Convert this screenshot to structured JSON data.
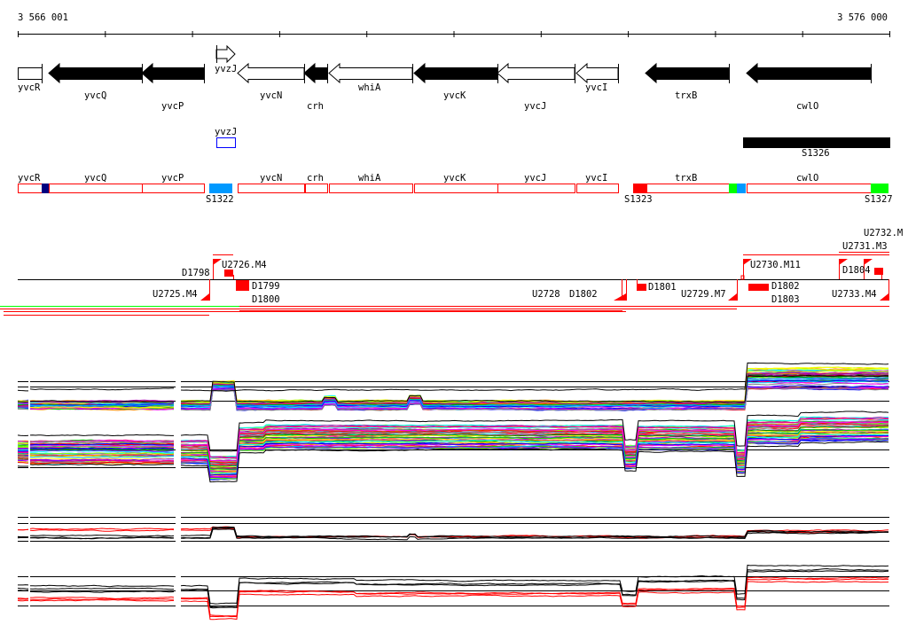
{
  "ruler": {
    "start_label": "3 566 001",
    "end_label": "3 576 000"
  },
  "genes": [
    {
      "name": "yvcR",
      "strand": "none",
      "filled": false
    },
    {
      "name": "yvcQ",
      "strand": "-",
      "filled": true
    },
    {
      "name": "yvcP",
      "strand": "-",
      "filled": true
    },
    {
      "name": "yvzJ",
      "strand": "+",
      "filled": false
    },
    {
      "name": "yvcN",
      "strand": "-",
      "filled": false
    },
    {
      "name": "crh",
      "strand": "-",
      "filled": true
    },
    {
      "name": "whiA",
      "strand": "-",
      "filled": false
    },
    {
      "name": "yvcK",
      "strand": "-",
      "filled": true
    },
    {
      "name": "yvcJ",
      "strand": "-",
      "filled": false
    },
    {
      "name": "yvcI",
      "strand": "-",
      "filled": false
    },
    {
      "name": "trxB",
      "strand": "-",
      "filled": true
    },
    {
      "name": "cwlO",
      "strand": "-",
      "filled": true
    }
  ],
  "track2": {
    "yvzJ_label": "yvzJ",
    "segment_label": "S1326"
  },
  "track3": {
    "genes": [
      "yvcR",
      "yvcQ",
      "yvcP",
      "yvcN",
      "crh",
      "whiA",
      "yvcK",
      "yvcJ",
      "yvcI",
      "trxB",
      "cwlO"
    ],
    "segments": [
      "S1322",
      "S1323",
      "S1327"
    ],
    "colors": {
      "outline": "#ff0000",
      "navy": "#000080",
      "blue": "#0099ff",
      "red": "#ff0000",
      "green": "#00ff00"
    }
  },
  "transcripts": {
    "up": [
      "U2726.M4",
      "U2730.M11",
      "U2731.M3",
      "U2732.M",
      "D1798",
      "D1804"
    ],
    "down": [
      "U2725.M4",
      "D1799",
      "D1800",
      "U2728",
      "D1802",
      "D1801",
      "U2729.M7",
      "D1802",
      "D1803",
      "U2733.M4"
    ]
  }
}
